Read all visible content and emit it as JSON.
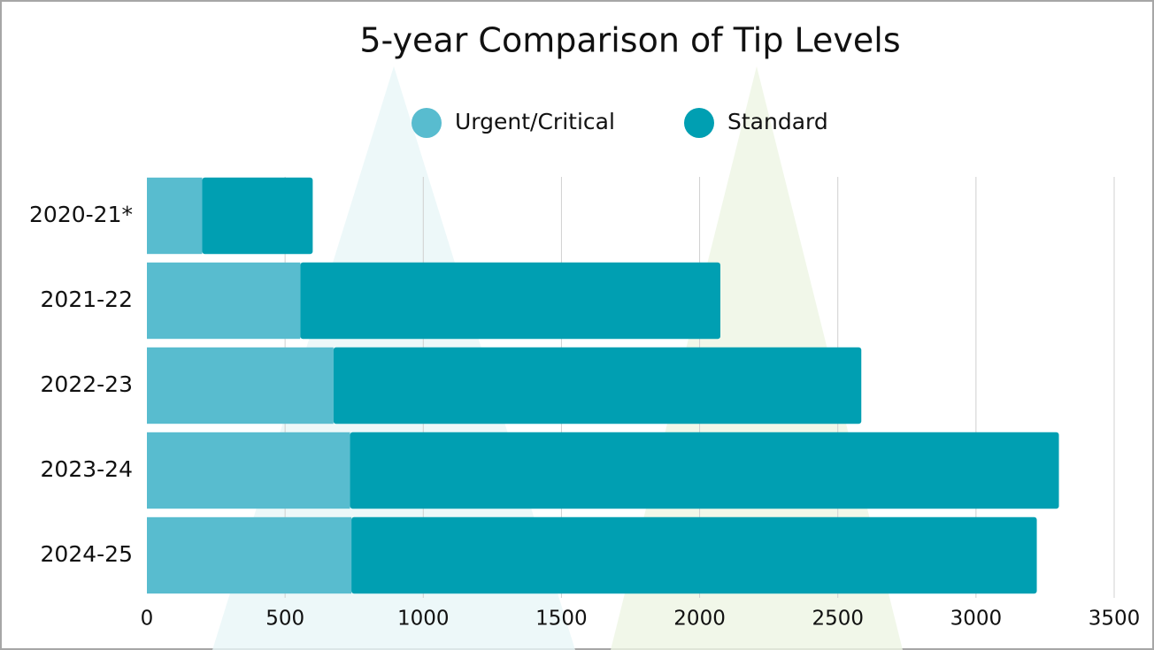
{
  "chart_data": {
    "type": "stacked-bar-horizontal",
    "title": "5-year Comparison of Tip Levels",
    "categories": [
      "2020-21*",
      "2021-22",
      "2022-23",
      "2023-24",
      "2024-25"
    ],
    "series": [
      {
        "name": "Urgent/Critical",
        "color": "#58bccf",
        "values": [
          200,
          555,
          675,
          735,
          740
        ]
      },
      {
        "name": "Standard",
        "color": "#009fb2",
        "values": [
          400,
          1520,
          1910,
          2565,
          2480
        ]
      }
    ],
    "xlim": [
      0,
      3500
    ],
    "xticks": [
      0,
      500,
      1000,
      1500,
      2000,
      2500,
      3000,
      3500
    ],
    "grid": true
  }
}
